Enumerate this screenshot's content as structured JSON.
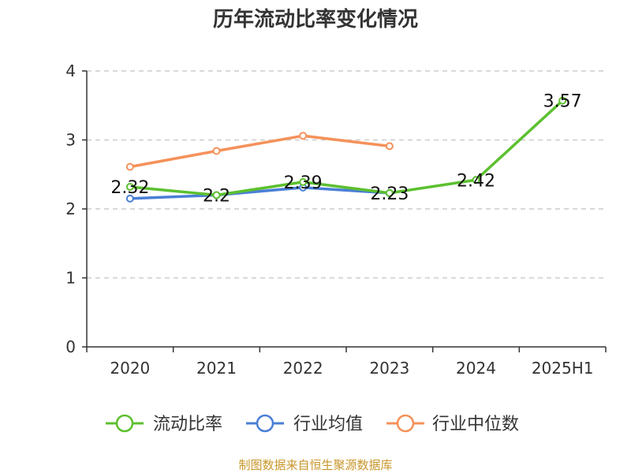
{
  "chart_data": {
    "type": "line",
    "title": "历年流动比率变化情况",
    "categories": [
      "2020",
      "2021",
      "2022",
      "2023",
      "2024",
      "2025H1"
    ],
    "ylim": [
      0,
      4
    ],
    "yticks": [
      "0",
      "1",
      "2",
      "3",
      "4"
    ],
    "grid": true,
    "legend_position": "bottom",
    "series": [
      {
        "name": "流动比率",
        "color": "#5cc02f",
        "values": [
          2.32,
          2.2,
          2.39,
          2.23,
          2.42,
          3.57
        ],
        "labels": [
          "2.32",
          "2.2",
          "2.39",
          "2.23",
          "2.42",
          "3.57"
        ]
      },
      {
        "name": "行业均值",
        "color": "#4a7fd6",
        "values": [
          2.15,
          2.2,
          2.31,
          2.23,
          null,
          null
        ]
      },
      {
        "name": "行业中位数",
        "color": "#f5915a",
        "values": [
          2.61,
          2.84,
          3.06,
          2.91,
          null,
          null
        ]
      }
    ]
  },
  "source": "制图数据来自恒生聚源数据库"
}
